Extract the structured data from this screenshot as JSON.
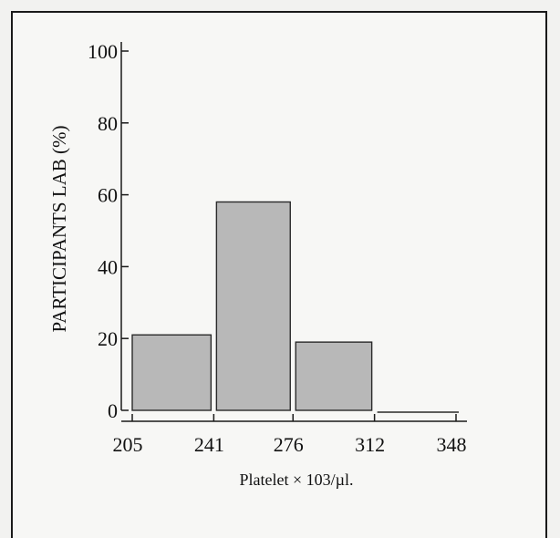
{
  "chart_data": {
    "type": "bar",
    "title": "",
    "xlabel": "Platelet × 103/µl.",
    "ylabel": "PARTICIPANTS LAB (%)",
    "x_tick_labels": [
      "205",
      "241",
      "276",
      "312",
      "348"
    ],
    "y_tick_labels": [
      "0",
      "20",
      "40",
      "60",
      "80",
      "100"
    ],
    "bins": [
      {
        "from": 205,
        "to": 241,
        "value": 21
      },
      {
        "from": 241,
        "to": 276,
        "value": 58
      },
      {
        "from": 276,
        "to": 312,
        "value": 19
      },
      {
        "from": 312,
        "to": 348,
        "value": 0
      }
    ],
    "ylim": [
      0,
      100
    ],
    "grid": false,
    "colors": {
      "bar_fill": "#b8b8b8",
      "bar_stroke": "#2a2a2a",
      "axis": "#1a1a1a",
      "background": "#f7f7f5"
    }
  }
}
